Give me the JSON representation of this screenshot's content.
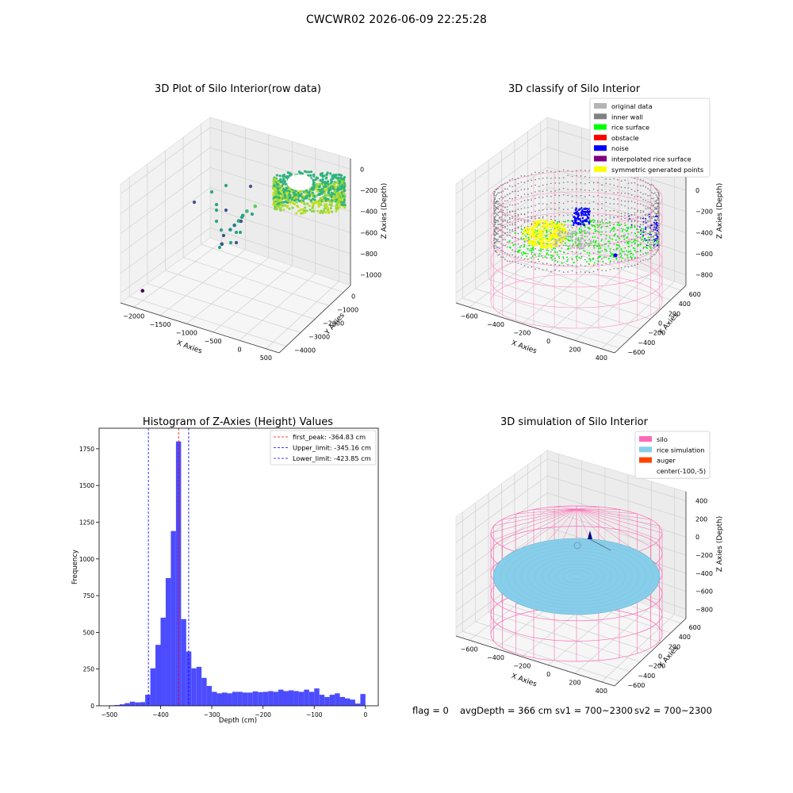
{
  "figure": {
    "suptitle": "CWCWR02 2026-06-09 22:25:28",
    "status": {
      "flag": "flag = 0",
      "avg_depth": "avgDepth = 366 cm",
      "sv1": "sv1 = 700~2300",
      "sv2": "sv2 = 700~2300"
    }
  },
  "chart_data": [
    {
      "type": "scatter",
      "projection": "3d",
      "title": "3D Plot of Silo Interior(row data)",
      "xlabel": "X Axies",
      "ylabel": "Y Axies",
      "zlabel": "Z Axies (Depth)",
      "xticks": [
        "−2000",
        "−1500",
        "−1000",
        "−500",
        "0",
        "500"
      ],
      "yticks": [
        "−4000",
        "−3000",
        "−2000",
        "−1000",
        "0"
      ],
      "zticks": [
        "−1000",
        "−800",
        "−600",
        "−400",
        "−200",
        "0"
      ],
      "colormap": "viridis",
      "scatter_points": [
        {
          "x": -1970,
          "y": -3950,
          "z": -1000
        },
        {
          "x": -1200,
          "y": -1700,
          "z": -700
        },
        {
          "x": -1100,
          "y": -1500,
          "z": -560
        },
        {
          "x": -1050,
          "y": -1400,
          "z": -520
        },
        {
          "x": -1000,
          "y": -1300,
          "z": -480
        },
        {
          "x": -950,
          "y": -1200,
          "z": -430
        },
        {
          "x": -900,
          "y": -1100,
          "z": -390
        },
        {
          "x": -800,
          "y": -900,
          "z": -350
        }
      ],
      "band": "dense point cloud near x 0–400, y 0–500, depth −200 to −600"
    },
    {
      "type": "scatter",
      "projection": "3d",
      "title": "3D classify of Silo Interior",
      "xlabel": "X Axies",
      "ylabel": "Y Axies",
      "zlabel": "Z Axies (Depth)",
      "xticks": [
        "−600",
        "−400",
        "−200",
        "0",
        "200",
        "400"
      ],
      "yticks": [
        "−600",
        "−400",
        "−200",
        "0",
        "200",
        "400",
        "600"
      ],
      "zticks": [
        "−800",
        "−600",
        "−400",
        "−200",
        "0",
        "200"
      ],
      "legend_position": "top-right",
      "legend": [
        {
          "label": "original data",
          "color": "#b4b4b4"
        },
        {
          "label": "inner wall",
          "color": "#808080"
        },
        {
          "label": "rice surface",
          "color": "#00ff00"
        },
        {
          "label": "obstacle",
          "color": "#ff0000"
        },
        {
          "label": "noise",
          "color": "#0000ff"
        },
        {
          "label": "interpolated rice surface",
          "color": "#800080"
        },
        {
          "label": "symmetric generated points",
          "color": "#ffff00"
        }
      ],
      "silo_wire_color": "#ff8fc8"
    },
    {
      "type": "bar",
      "subtype": "histogram",
      "title": "Histogram of Z-Axies (Height) Values",
      "xlabel": "Depth (cm)",
      "ylabel": "Frequency",
      "xlim": [
        -520,
        25
      ],
      "ylim": [
        0,
        1890
      ],
      "xticks": [
        "−500",
        "−400",
        "−300",
        "−200",
        "−100",
        "0"
      ],
      "yticks": [
        "0",
        "250",
        "500",
        "750",
        "1000",
        "1250",
        "1500",
        "1750"
      ],
      "bar_color": "#4c4cff",
      "bin_start": -500,
      "bin_width": 10,
      "values": [
        3,
        5,
        10,
        18,
        28,
        23,
        25,
        75,
        255,
        415,
        600,
        870,
        1190,
        1800,
        590,
        370,
        255,
        265,
        190,
        135,
        95,
        85,
        90,
        85,
        95,
        95,
        90,
        90,
        98,
        93,
        95,
        100,
        95,
        110,
        100,
        105,
        100,
        95,
        110,
        95,
        118,
        75,
        60,
        75,
        85,
        60,
        50,
        42,
        15,
        80
      ],
      "reference_lines": [
        {
          "label": "first_peak: -364.83 cm",
          "x": -364.83,
          "color": "#ff0000"
        },
        {
          "label": "Upper_limit: -345.16 cm",
          "x": -345.16,
          "color": "#0000ff"
        },
        {
          "label": "Lower_limit: -423.85 cm",
          "x": -423.85,
          "color": "#0000ff"
        }
      ],
      "legend_position": "top-right"
    },
    {
      "type": "scatter",
      "projection": "3d",
      "title": "3D simulation of Silo Interior",
      "xlabel": "X Axies",
      "ylabel": "Y Axies",
      "zlabel": "Z Axies (Depth)",
      "xticks": [
        "−600",
        "−400",
        "−200",
        "0",
        "200",
        "400"
      ],
      "yticks": [
        "−600",
        "−400",
        "−200",
        "0",
        "200",
        "400",
        "600"
      ],
      "zticks": [
        "−800",
        "−600",
        "−400",
        "−200",
        "0",
        "200",
        "400"
      ],
      "legend_position": "top-right",
      "legend": [
        {
          "label": "silo",
          "color": "#ff69b4"
        },
        {
          "label": "rice simulation",
          "color": "#87ceeb"
        },
        {
          "label": "auger",
          "color": "#ff4500"
        },
        {
          "label": "center(-100,-5)",
          "color": ""
        }
      ]
    }
  ]
}
